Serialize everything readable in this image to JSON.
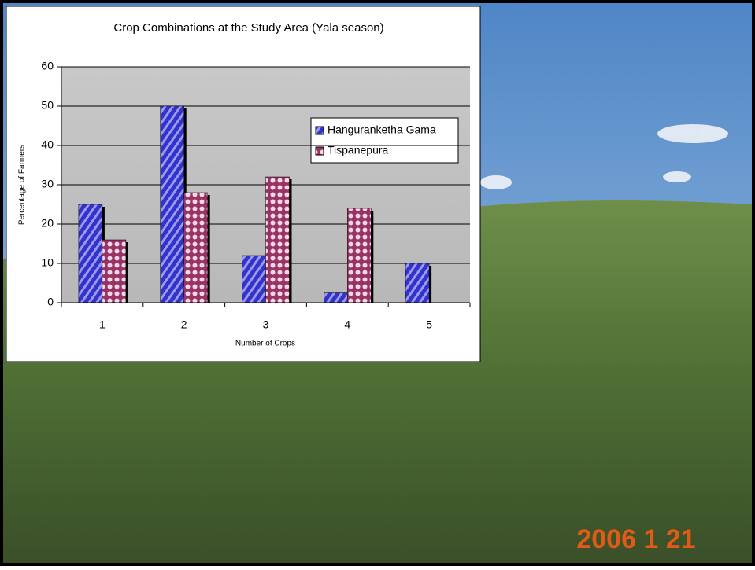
{
  "chart_data": {
    "type": "bar",
    "title": "Crop Combinations at the Study Area (Yala season)",
    "x_label": "Number of Crops",
    "y_label": "Percentage of Farmers",
    "categories": [
      "1",
      "2",
      "3",
      "4",
      "5"
    ],
    "series": [
      {
        "name": "Hanguranketha Gama",
        "color": "#3333cc",
        "values": [
          25,
          50,
          12,
          2.5,
          10
        ]
      },
      {
        "name": "Tispanepura",
        "color": "#993366",
        "values": [
          16,
          28,
          32,
          24,
          null
        ]
      }
    ],
    "ylim": [
      0,
      60
    ],
    "yticks": [
      0,
      10,
      20,
      30,
      40,
      50,
      60
    ],
    "grid": true,
    "legend": "right"
  },
  "photo": {
    "date_stamp": "2006   1 21"
  }
}
